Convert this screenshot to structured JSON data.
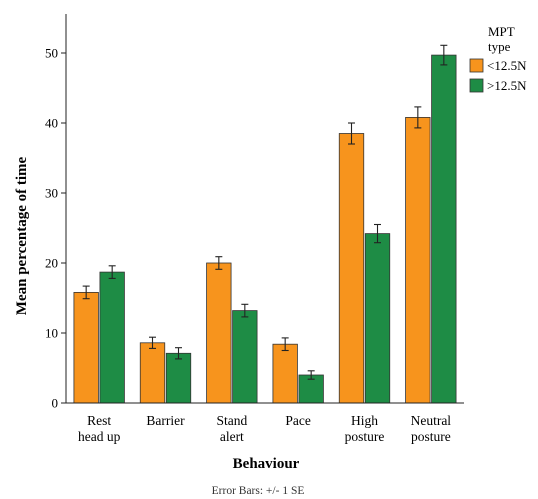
{
  "chart_data": {
    "type": "bar",
    "xlabel": "Behaviour",
    "ylabel": "Mean percentage of time",
    "ylim": [
      0,
      55
    ],
    "yticks": [
      0,
      10,
      20,
      30,
      40,
      50
    ],
    "grid": false,
    "legend_position": "top-right",
    "legend_title": [
      "MPT",
      "type"
    ],
    "categories": [
      [
        "Rest",
        "head up"
      ],
      [
        "Barrier"
      ],
      [
        "Stand",
        "alert"
      ],
      [
        "Pace"
      ],
      [
        "High",
        "posture"
      ],
      [
        "Neutral",
        "posture"
      ]
    ],
    "series": [
      {
        "name": "<12.5N",
        "color": "#F7941D",
        "values": [
          15.8,
          8.6,
          20.0,
          8.4,
          38.5,
          40.8
        ],
        "errors": [
          0.9,
          0.8,
          0.9,
          0.9,
          1.5,
          1.5
        ]
      },
      {
        "name": ">12.5N",
        "color": "#1E8C45",
        "values": [
          18.7,
          7.1,
          13.2,
          4.0,
          24.2,
          49.7
        ],
        "errors": [
          0.9,
          0.8,
          0.9,
          0.6,
          1.3,
          1.4
        ]
      }
    ],
    "note": "Error Bars: +/- 1 SE"
  }
}
